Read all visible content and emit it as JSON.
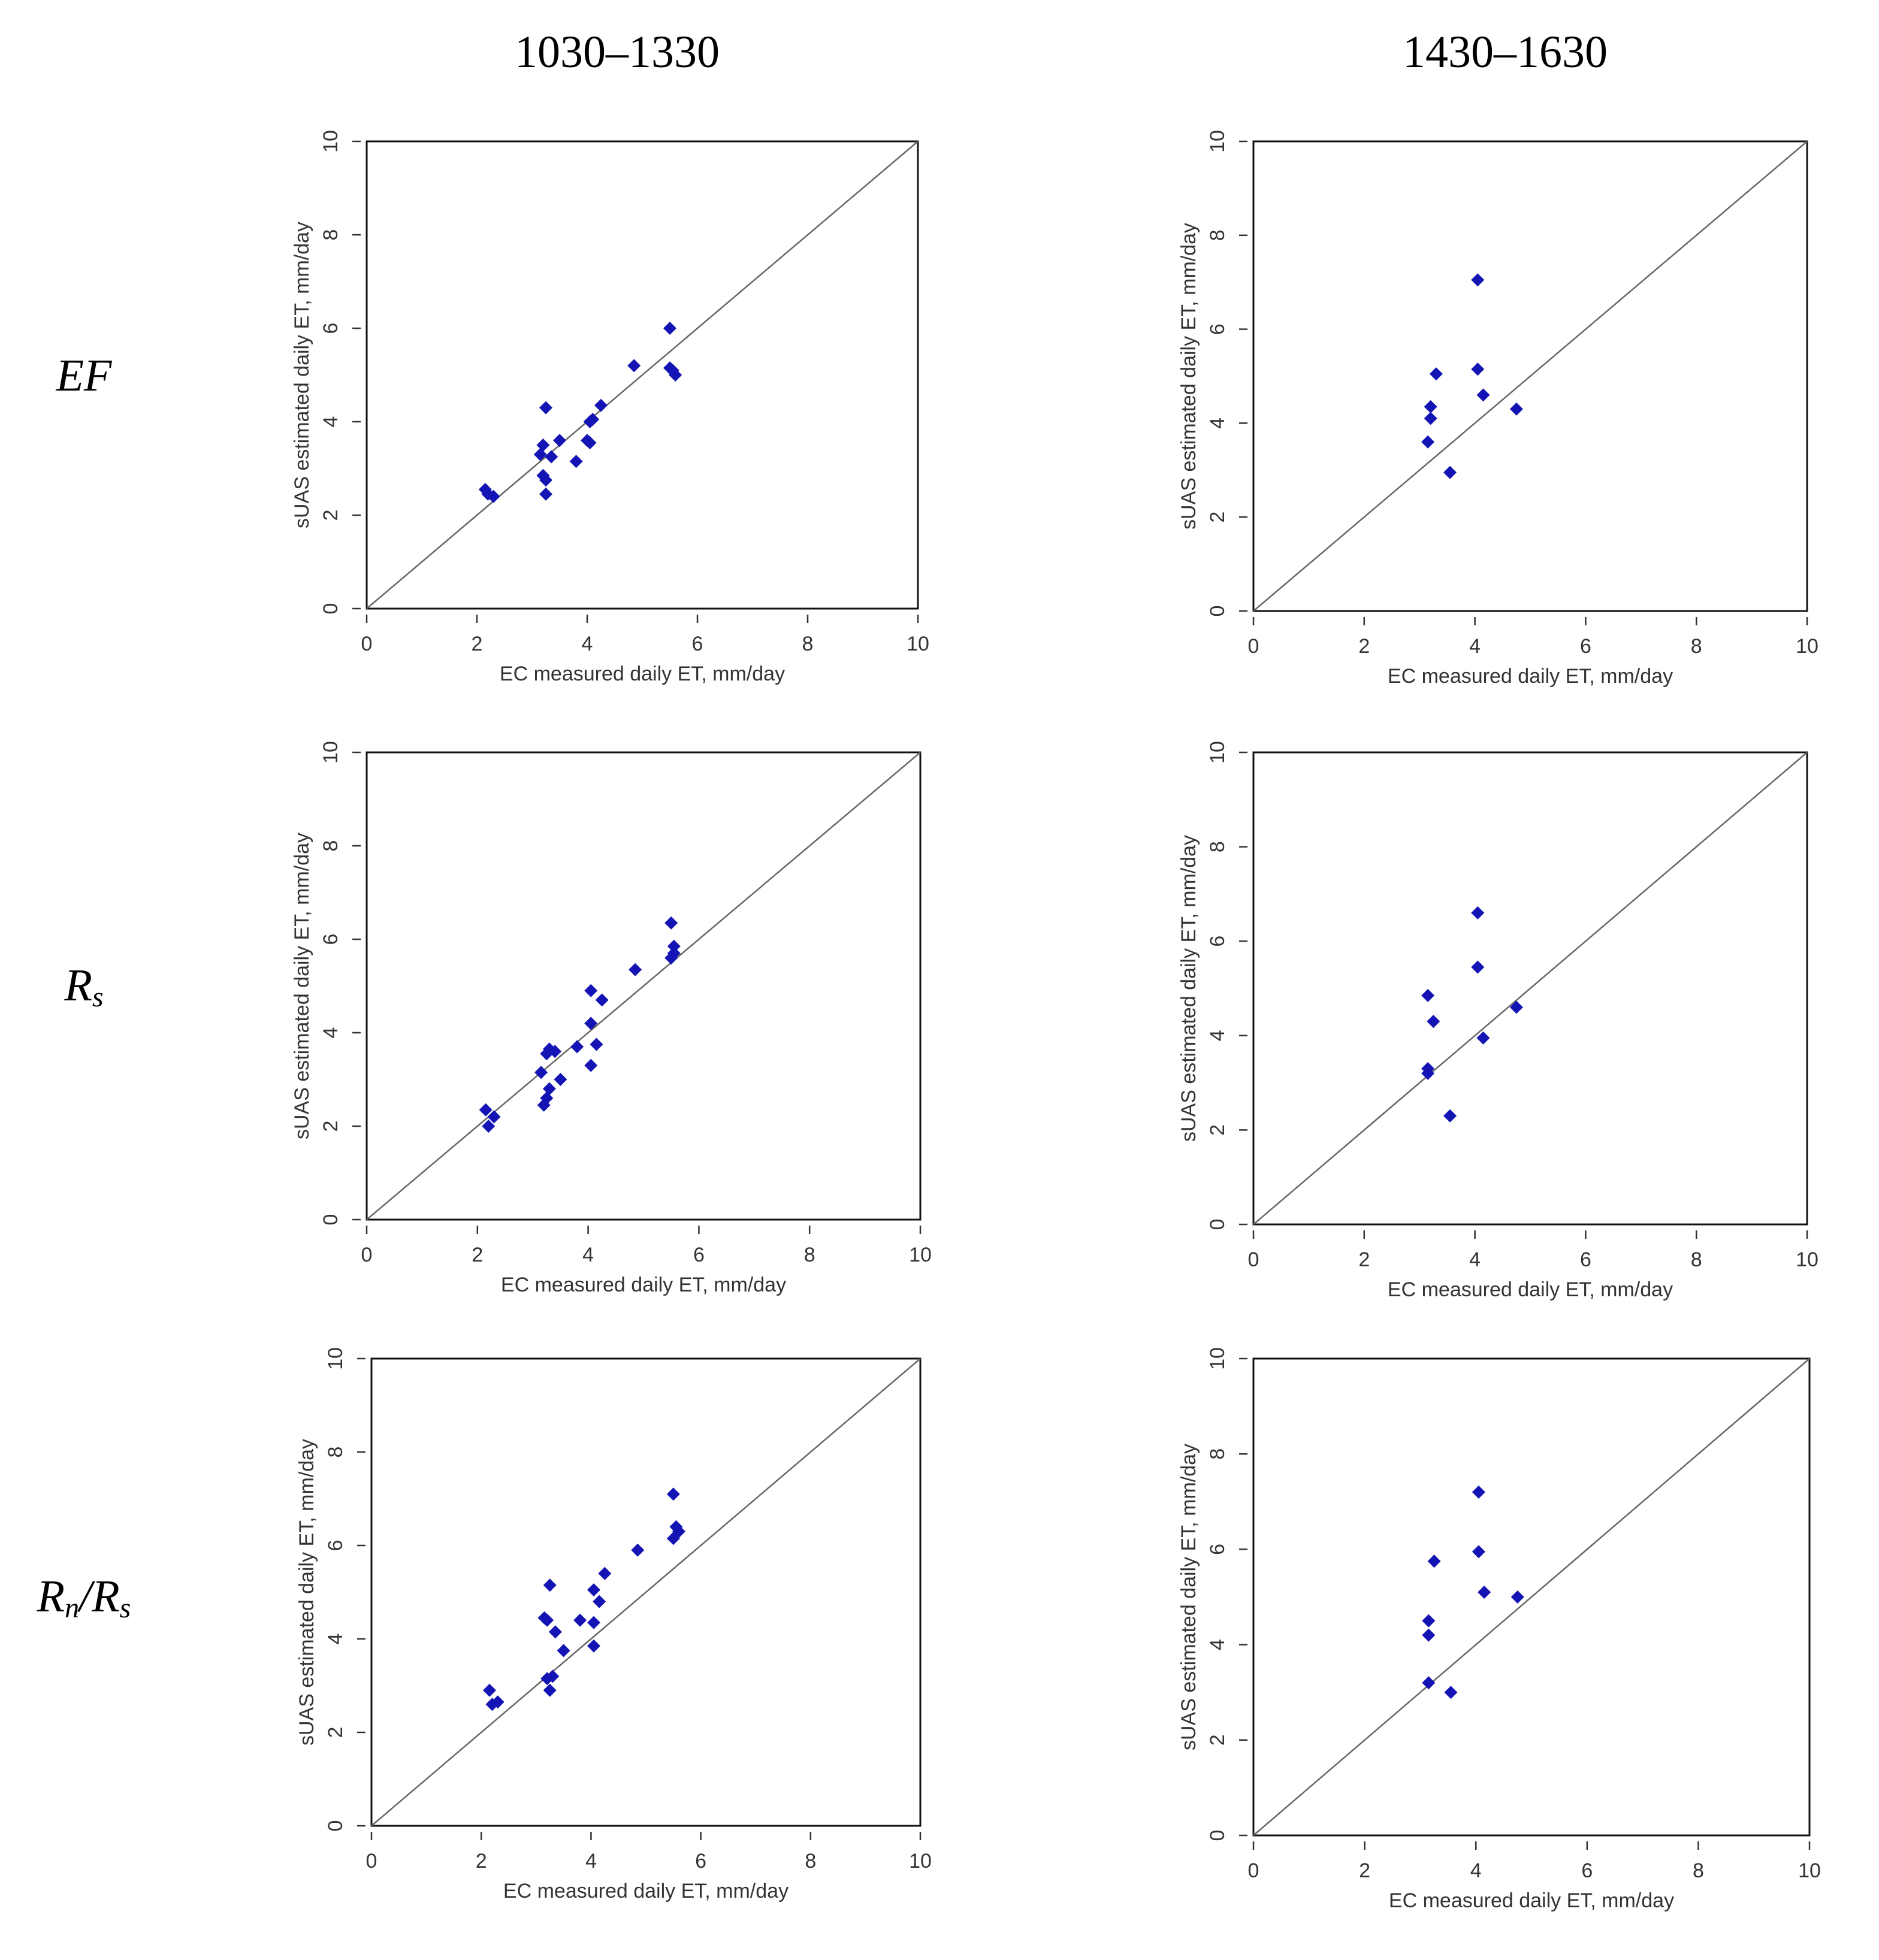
{
  "column_headers": [
    "1030–1330",
    "1430–1630"
  ],
  "row_labels": [
    {
      "main": "EF",
      "parts": [
        {
          "t": "EF",
          "sub": false
        }
      ]
    },
    {
      "main": "Rs",
      "parts": [
        {
          "t": "R",
          "sub": false
        },
        {
          "t": "s",
          "sub": true
        }
      ]
    },
    {
      "main": "Rn/Rs",
      "parts": [
        {
          "t": "R",
          "sub": false
        },
        {
          "t": "n",
          "sub": true
        },
        {
          "t": "/R",
          "sub": false
        },
        {
          "t": "s",
          "sub": true
        }
      ]
    }
  ],
  "chart_data": [
    {
      "type": "scatter",
      "row": "EF",
      "column": "1030–1330",
      "xlabel": "EC measured daily ET, mm/day",
      "ylabel": "sUAS estimated daily ET, mm/day",
      "xlim": [
        0,
        10
      ],
      "ylim": [
        0,
        10
      ],
      "xticks": [
        0,
        2,
        4,
        6,
        8,
        10
      ],
      "yticks": [
        0,
        2,
        4,
        6,
        8,
        10
      ],
      "reference_line": "1:1",
      "points": [
        [
          2.15,
          2.55
        ],
        [
          2.2,
          2.45
        ],
        [
          2.3,
          2.4
        ],
        [
          3.15,
          3.3
        ],
        [
          3.2,
          3.5
        ],
        [
          3.2,
          2.85
        ],
        [
          3.25,
          2.75
        ],
        [
          3.25,
          2.45
        ],
        [
          3.25,
          4.3
        ],
        [
          3.35,
          3.25
        ],
        [
          3.5,
          3.6
        ],
        [
          3.8,
          3.15
        ],
        [
          4.0,
          3.6
        ],
        [
          4.05,
          3.55
        ],
        [
          4.05,
          4.0
        ],
        [
          4.1,
          4.05
        ],
        [
          4.25,
          4.35
        ],
        [
          4.85,
          5.2
        ],
        [
          5.5,
          6.0
        ],
        [
          5.5,
          5.15
        ],
        [
          5.55,
          5.1
        ],
        [
          5.6,
          5.0
        ]
      ]
    },
    {
      "type": "scatter",
      "row": "EF",
      "column": "1430–1630",
      "xlabel": "EC measured daily ET, mm/day",
      "ylabel": "sUAS estimated daily ET, mm/day",
      "xlim": [
        0,
        10
      ],
      "ylim": [
        0,
        10
      ],
      "xticks": [
        0,
        2,
        4,
        6,
        8,
        10
      ],
      "yticks": [
        0,
        2,
        4,
        6,
        8,
        10
      ],
      "reference_line": "1:1",
      "points": [
        [
          3.15,
          3.6
        ],
        [
          3.2,
          4.1
        ],
        [
          3.2,
          4.35
        ],
        [
          3.3,
          5.05
        ],
        [
          3.55,
          2.95
        ],
        [
          4.05,
          7.05
        ],
        [
          4.05,
          5.15
        ],
        [
          4.15,
          4.6
        ],
        [
          4.75,
          4.3
        ]
      ]
    },
    {
      "type": "scatter",
      "row": "Rs",
      "column": "1030–1330",
      "xlabel": "EC measured daily ET, mm/day",
      "ylabel": "sUAS estimated daily ET, mm/day",
      "xlim": [
        0,
        10
      ],
      "ylim": [
        0,
        10
      ],
      "xticks": [
        0,
        2,
        4,
        6,
        8,
        10
      ],
      "yticks": [
        0,
        2,
        4,
        6,
        8,
        10
      ],
      "reference_line": "1:1",
      "points": [
        [
          2.15,
          2.35
        ],
        [
          2.2,
          2.0
        ],
        [
          2.3,
          2.2
        ],
        [
          3.15,
          3.15
        ],
        [
          3.2,
          2.45
        ],
        [
          3.25,
          2.6
        ],
        [
          3.25,
          3.55
        ],
        [
          3.3,
          3.65
        ],
        [
          3.3,
          2.8
        ],
        [
          3.4,
          3.6
        ],
        [
          3.5,
          3.0
        ],
        [
          3.8,
          3.7
        ],
        [
          4.05,
          4.9
        ],
        [
          4.05,
          4.2
        ],
        [
          4.05,
          3.3
        ],
        [
          4.15,
          3.75
        ],
        [
          4.25,
          4.7
        ],
        [
          4.85,
          5.35
        ],
        [
          5.5,
          6.35
        ],
        [
          5.5,
          5.6
        ],
        [
          5.55,
          5.85
        ],
        [
          5.55,
          5.7
        ]
      ]
    },
    {
      "type": "scatter",
      "row": "Rs",
      "column": "1430–1630",
      "xlabel": "EC measured daily ET, mm/day",
      "ylabel": "sUAS estimated daily ET, mm/day",
      "xlim": [
        0,
        10
      ],
      "ylim": [
        0,
        10
      ],
      "xticks": [
        0,
        2,
        4,
        6,
        8,
        10
      ],
      "yticks": [
        0,
        2,
        4,
        6,
        8,
        10
      ],
      "reference_line": "1:1",
      "points": [
        [
          3.15,
          4.85
        ],
        [
          3.15,
          3.3
        ],
        [
          3.15,
          3.2
        ],
        [
          3.25,
          4.3
        ],
        [
          3.55,
          2.3
        ],
        [
          4.05,
          6.6
        ],
        [
          4.05,
          5.45
        ],
        [
          4.15,
          3.95
        ],
        [
          4.75,
          4.6
        ]
      ]
    },
    {
      "type": "scatter",
      "row": "Rn/Rs",
      "column": "1030–1330",
      "xlabel": "EC measured daily ET, mm/day",
      "ylabel": "sUAS estimated daily ET, mm/day",
      "xlim": [
        0,
        10
      ],
      "ylim": [
        0,
        10
      ],
      "xticks": [
        0,
        2,
        4,
        6,
        8,
        10
      ],
      "yticks": [
        0,
        2,
        4,
        6,
        8,
        10
      ],
      "reference_line": "1:1",
      "points": [
        [
          2.15,
          2.9
        ],
        [
          2.2,
          2.6
        ],
        [
          2.3,
          2.65
        ],
        [
          3.15,
          4.45
        ],
        [
          3.2,
          4.4
        ],
        [
          3.2,
          3.15
        ],
        [
          3.25,
          5.15
        ],
        [
          3.3,
          3.2
        ],
        [
          3.25,
          2.9
        ],
        [
          3.35,
          4.15
        ],
        [
          3.5,
          3.75
        ],
        [
          3.8,
          4.4
        ],
        [
          4.05,
          5.05
        ],
        [
          4.05,
          4.35
        ],
        [
          4.05,
          3.85
        ],
        [
          4.15,
          4.8
        ],
        [
          4.25,
          5.4
        ],
        [
          4.85,
          5.9
        ],
        [
          5.5,
          7.1
        ],
        [
          5.5,
          6.15
        ],
        [
          5.55,
          6.4
        ],
        [
          5.6,
          6.3
        ]
      ]
    },
    {
      "type": "scatter",
      "row": "Rn/Rs",
      "column": "1430–1630",
      "xlabel": "EC measured daily ET, mm/day",
      "ylabel": "sUAS estimated daily ET, mm/day",
      "xlim": [
        0,
        10
      ],
      "ylim": [
        0,
        10
      ],
      "xticks": [
        0,
        2,
        4,
        6,
        8,
        10
      ],
      "yticks": [
        0,
        2,
        4,
        6,
        8,
        10
      ],
      "reference_line": "1:1",
      "points": [
        [
          3.15,
          4.5
        ],
        [
          3.15,
          4.2
        ],
        [
          3.15,
          3.2
        ],
        [
          3.25,
          5.75
        ],
        [
          3.55,
          3.0
        ],
        [
          4.05,
          7.2
        ],
        [
          4.05,
          5.95
        ],
        [
          4.15,
          5.1
        ],
        [
          4.75,
          5.0
        ]
      ]
    }
  ],
  "colors": {
    "point": "#1414b4",
    "frame": "#111111",
    "reference_line": "#666666",
    "text": "#333333"
  }
}
